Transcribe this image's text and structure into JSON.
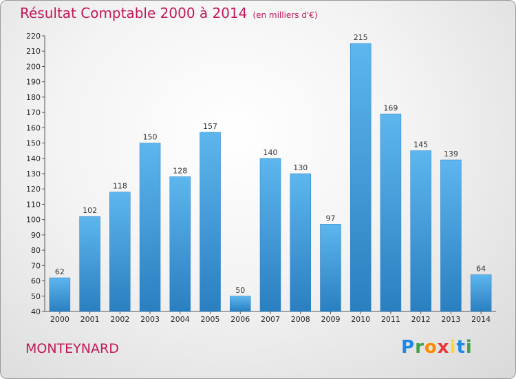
{
  "header": {
    "title": "Résultat Comptable 2000 à 2014",
    "subtitle": "(en milliers d'€)"
  },
  "footer": {
    "place": "MONTEYNARD",
    "logo": "Proxiti"
  },
  "colors": {
    "bar": "#3a9fe0",
    "bar_dark": "#2a7fc0",
    "title": "#c2185b"
  },
  "chart_data": {
    "type": "bar",
    "categories": [
      "2000",
      "2001",
      "2002",
      "2003",
      "2004",
      "2005",
      "2006",
      "2007",
      "2008",
      "2009",
      "2010",
      "2011",
      "2012",
      "2013",
      "2014"
    ],
    "values": [
      62,
      102,
      118,
      150,
      128,
      157,
      50,
      140,
      130,
      97,
      215,
      169,
      145,
      139,
      64
    ],
    "ylim": [
      40,
      220
    ],
    "yticks": [
      40,
      50,
      60,
      70,
      80,
      90,
      100,
      110,
      120,
      130,
      140,
      150,
      160,
      170,
      180,
      190,
      200,
      210,
      220
    ],
    "grid": false,
    "legend": "none"
  }
}
